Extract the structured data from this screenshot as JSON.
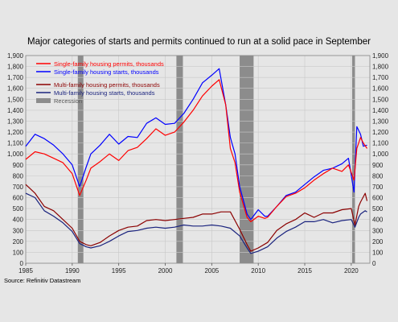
{
  "title": "Major categories of starts and permits continued to run at a solid pace in September",
  "source": "Source: Refinitiv Datastream",
  "chart_data": {
    "type": "line",
    "x_range": [
      1985,
      2022
    ],
    "xticks": [
      "1985",
      "1990",
      "1995",
      "2000",
      "2005",
      "2010",
      "2015",
      "2020"
    ],
    "ylim": [
      0,
      1900
    ],
    "yticks": [
      "0",
      "100",
      "200",
      "300",
      "400",
      "500",
      "600",
      "700",
      "800",
      "900",
      "1,000",
      "1,100",
      "1,200",
      "1,300",
      "1,400",
      "1,500",
      "1,600",
      "1,700",
      "1,800",
      "1,900"
    ],
    "ytick_values": [
      0,
      100,
      200,
      300,
      400,
      500,
      600,
      700,
      800,
      900,
      1000,
      1100,
      1200,
      1300,
      1400,
      1500,
      1600,
      1700,
      1800,
      1900
    ],
    "grid": true,
    "legend_position": "top-left",
    "recession_label": "Recession",
    "recessions": [
      [
        1990.6,
        1991.2
      ],
      [
        2001.2,
        2001.9
      ],
      [
        2008.0,
        2009.5
      ],
      [
        2020.1,
        2020.4
      ]
    ],
    "series": [
      {
        "name": "Single-family housing permits, thousands",
        "color": "#ff0000",
        "x": [
          1985,
          1986,
          1987,
          1988,
          1989,
          1990,
          1990.8,
          1991.5,
          1992,
          1993,
          1994,
          1995,
          1996,
          1997,
          1998,
          1999,
          2000,
          2001,
          2002,
          2003,
          2004,
          2005,
          2005.8,
          2006.5,
          2007,
          2007.5,
          2008,
          2008.8,
          2009.2,
          2010,
          2010.7,
          2011,
          2012,
          2013,
          2014,
          2015,
          2016,
          2017,
          2018,
          2019,
          2019.7,
          2020.3,
          2020.6,
          2021,
          2021.3,
          2021.7
        ],
        "y": [
          950,
          1020,
          1000,
          960,
          920,
          820,
          620,
          760,
          870,
          930,
          1000,
          940,
          1030,
          1060,
          1140,
          1230,
          1170,
          1200,
          1290,
          1400,
          1530,
          1620,
          1680,
          1450,
          1050,
          920,
          650,
          420,
          380,
          430,
          410,
          420,
          520,
          610,
          640,
          690,
          760,
          820,
          870,
          840,
          900,
          760,
          1050,
          1150,
          1100,
          1050
        ]
      },
      {
        "name": "Single-family housing starts, thousands",
        "color": "#0000ff",
        "x": [
          1985,
          1986,
          1987,
          1988,
          1989,
          1990,
          1990.8,
          1991.5,
          1992,
          1993,
          1994,
          1995,
          1996,
          1997,
          1998,
          1999,
          2000,
          2001,
          2002,
          2003,
          2004,
          2005,
          2005.8,
          2006.5,
          2007,
          2007.5,
          2008,
          2008.8,
          2009.2,
          2010,
          2010.7,
          2011,
          2012,
          2013,
          2014,
          2015,
          2016,
          2017,
          2018,
          2019,
          2019.7,
          2020.3,
          2020.6,
          2021,
          2021.3,
          2021.7
        ],
        "y": [
          1070,
          1180,
          1140,
          1080,
          1000,
          900,
          700,
          880,
          1000,
          1080,
          1180,
          1090,
          1160,
          1150,
          1280,
          1330,
          1270,
          1280,
          1370,
          1500,
          1650,
          1720,
          1780,
          1450,
          1150,
          1000,
          700,
          450,
          400,
          490,
          430,
          430,
          520,
          620,
          650,
          720,
          790,
          850,
          870,
          910,
          960,
          650,
          1250,
          1180,
          1070,
          1080
        ]
      },
      {
        "name": "Multi-family housing permits, thousands",
        "color": "#8b0000",
        "x": [
          1985,
          1986,
          1987,
          1988,
          1989,
          1990,
          1990.8,
          1991.5,
          1992,
          1993,
          1994,
          1995,
          1996,
          1997,
          1998,
          1999,
          2000,
          2001,
          2002,
          2003,
          2004,
          2005,
          2006,
          2007,
          2008,
          2008.8,
          2009.2,
          2010,
          2011,
          2012,
          2013,
          2014,
          2015,
          2016,
          2017,
          2018,
          2019,
          2020,
          2020.4,
          2020.8,
          2021,
          2021.5,
          2021.7
        ],
        "y": [
          720,
          640,
          520,
          480,
          400,
          320,
          200,
          170,
          160,
          190,
          250,
          300,
          330,
          340,
          390,
          400,
          390,
          400,
          410,
          420,
          450,
          450,
          470,
          470,
          310,
          170,
          110,
          140,
          190,
          300,
          360,
          400,
          460,
          420,
          460,
          460,
          490,
          500,
          350,
          520,
          560,
          640,
          570
        ]
      },
      {
        "name": "Multi-family housing starts, thousands",
        "color": "#1a237e",
        "x": [
          1985,
          1986,
          1987,
          1988,
          1989,
          1990,
          1990.8,
          1991.5,
          1992,
          1993,
          1994,
          1995,
          1996,
          1997,
          1998,
          1999,
          2000,
          2001,
          2002,
          2003,
          2004,
          2005,
          2006,
          2007,
          2008,
          2008.8,
          2009.2,
          2010,
          2011,
          2012,
          2013,
          2014,
          2015,
          2016,
          2017,
          2018,
          2019,
          2020,
          2020.4,
          2020.8,
          2021,
          2021.5,
          2021.7
        ],
        "y": [
          640,
          600,
          480,
          430,
          370,
          290,
          180,
          150,
          140,
          160,
          200,
          250,
          290,
          300,
          320,
          330,
          320,
          330,
          350,
          340,
          340,
          350,
          340,
          320,
          250,
          140,
          90,
          110,
          150,
          230,
          290,
          330,
          380,
          380,
          400,
          370,
          390,
          400,
          330,
          420,
          450,
          480,
          470
        ]
      }
    ]
  }
}
